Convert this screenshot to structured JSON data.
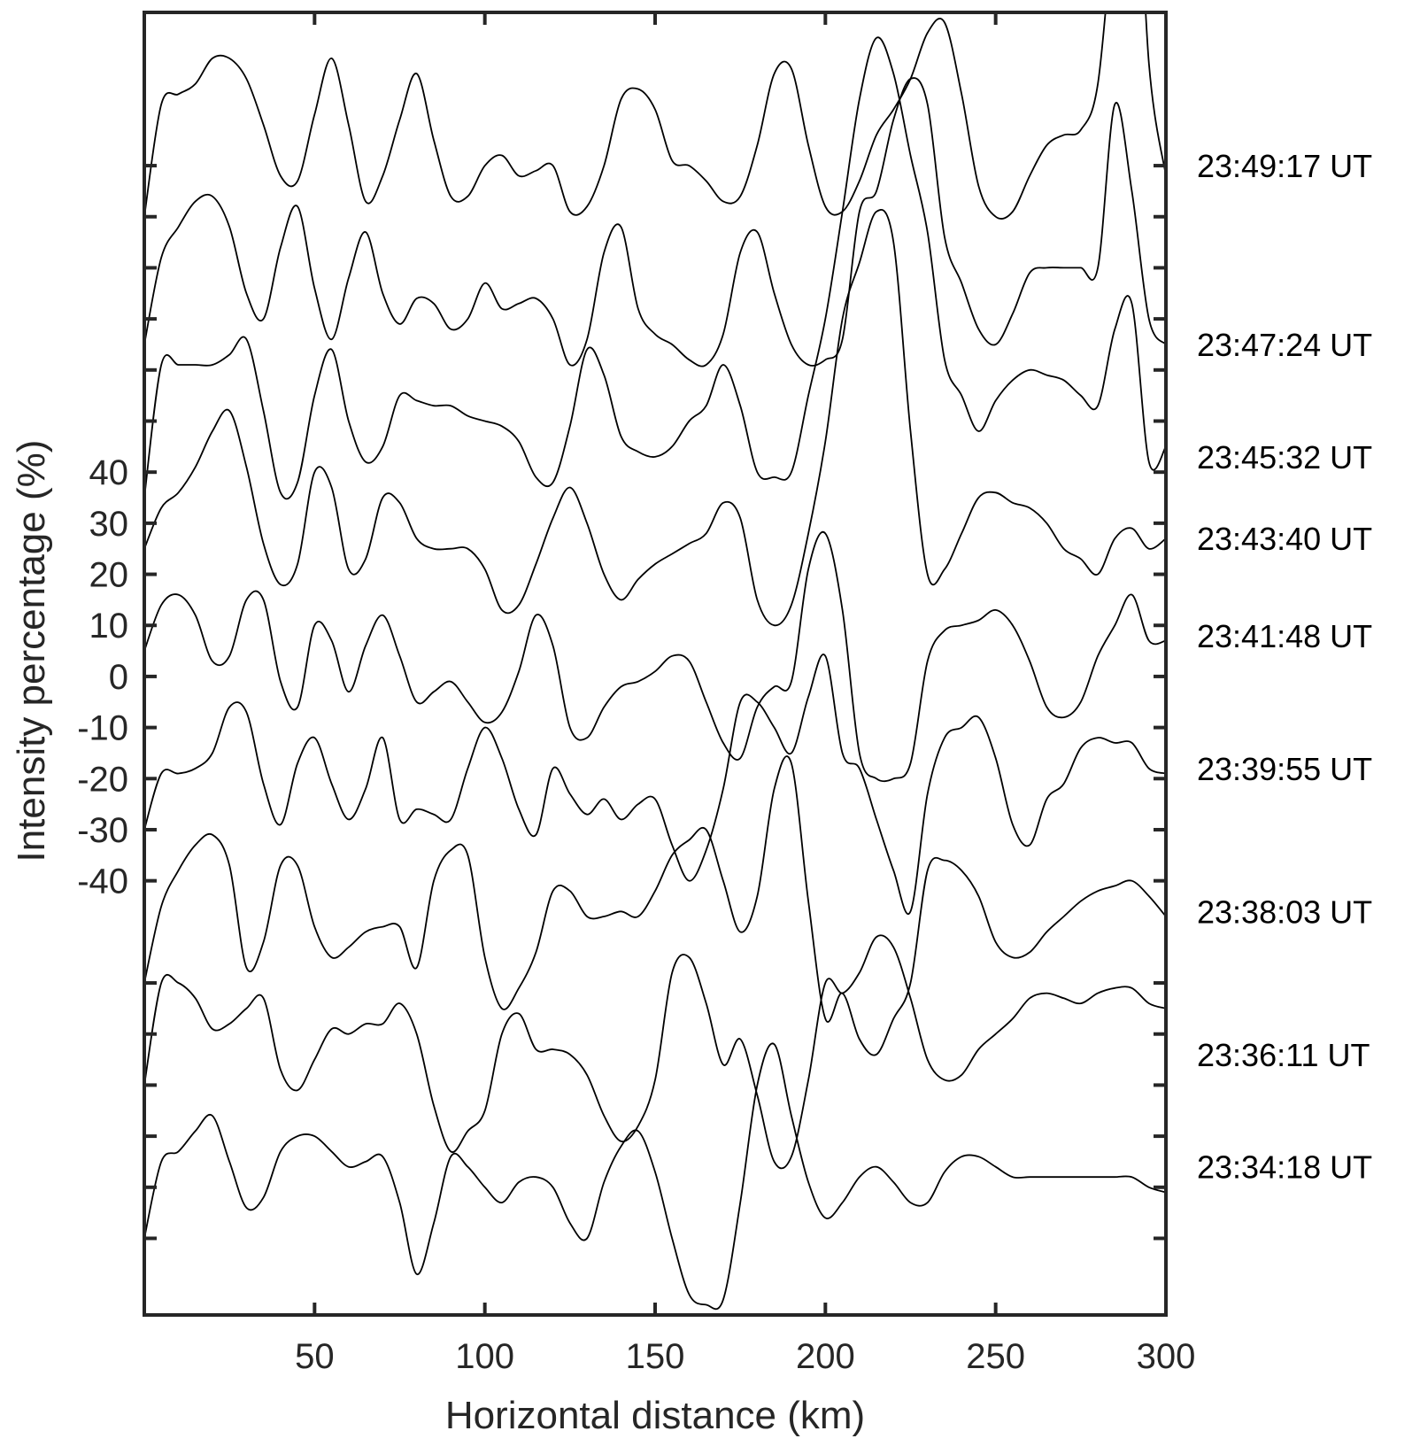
{
  "chart_data": {
    "type": "line",
    "title": "",
    "xlabel": "Horizontal distance (km)",
    "ylabel": "Intensity percentage (%)",
    "xlim": [
      0,
      300
    ],
    "ylim": [
      -125,
      130
    ],
    "x_ticks": [
      50,
      100,
      150,
      200,
      250,
      300
    ],
    "x_tick_labels": [
      "50",
      "100",
      "150",
      "200",
      "250",
      "300"
    ],
    "y_ticks_labeled": [
      40,
      30,
      20,
      10,
      0,
      -10,
      -20,
      -30,
      -40
    ],
    "y_tick_labels": [
      "40",
      "30",
      "20",
      "10",
      "0",
      "-10",
      "-20",
      "-30",
      "-40"
    ],
    "y_ticks_unlabeled": [
      -110,
      -100,
      -90,
      -80,
      -70,
      -60,
      50,
      60,
      70,
      80,
      90,
      100
    ],
    "grid": false,
    "line_color": "#000000",
    "axis_color": "#262626",
    "x": [
      0,
      5,
      10,
      15,
      20,
      25,
      30,
      35,
      40,
      45,
      50,
      55,
      60,
      65,
      70,
      75,
      80,
      85,
      90,
      95,
      100,
      105,
      110,
      115,
      120,
      125,
      130,
      135,
      140,
      145,
      150,
      155,
      160,
      165,
      170,
      175,
      180,
      185,
      190,
      195,
      200,
      205,
      210,
      215,
      220,
      225,
      230,
      235,
      240,
      245,
      250,
      255,
      260,
      265,
      270,
      275,
      280,
      285,
      290,
      295,
      300
    ],
    "series": [
      {
        "name": "23:49:17 UT",
        "label_y": 100,
        "values": [
          90,
          112,
          114,
          116,
          121,
          121,
          117,
          108,
          98,
          97,
          110,
          121,
          108,
          93,
          98,
          109,
          118,
          105,
          94,
          94,
          100,
          102,
          98,
          99,
          100,
          91,
          92,
          100,
          113,
          115,
          111,
          101,
          100,
          97,
          93,
          94,
          104,
          118,
          119,
          104,
          92,
          91,
          97,
          106,
          111,
          117,
          126,
          128,
          114,
          96,
          90,
          91,
          98,
          104,
          106,
          107,
          116,
          150,
          176,
          120,
          98
        ]
      },
      {
        "name": "23:47:24 UT",
        "label_y": 65,
        "values": [
          65,
          82,
          88,
          93,
          94,
          88,
          75,
          70,
          84,
          92,
          76,
          66,
          78,
          87,
          75,
          69,
          74,
          73,
          68,
          70,
          77,
          72,
          73,
          74,
          70,
          61,
          66,
          83,
          88,
          72,
          67,
          65,
          62,
          61,
          67,
          83,
          87,
          75,
          65,
          61,
          62,
          66,
          91,
          95,
          109,
          117,
          112,
          86,
          77,
          68,
          65,
          71,
          79,
          80,
          80,
          80,
          80,
          112,
          95,
          70,
          65
        ]
      },
      {
        "name": "23:45:32 UT",
        "label_y": 43,
        "values": [
          35,
          61,
          61,
          61,
          61,
          63,
          66,
          52,
          36,
          38,
          55,
          64,
          50,
          42,
          45,
          55,
          54,
          53,
          53,
          51,
          50,
          49,
          46,
          39,
          38,
          49,
          64,
          59,
          47,
          44,
          43,
          45,
          50,
          53,
          61,
          53,
          40,
          39,
          40,
          55,
          70,
          91,
          113,
          125,
          118,
          102,
          87,
          62,
          55,
          48,
          54,
          58,
          60,
          59,
          58,
          55,
          53,
          68,
          73,
          42,
          45
        ]
      },
      {
        "name": "23:43:40 UT",
        "label_y": 27,
        "values": [
          25,
          33,
          36,
          41,
          48,
          52,
          41,
          26,
          18,
          22,
          40,
          37,
          21,
          23,
          35,
          34,
          27,
          25,
          25,
          25,
          21,
          13,
          14,
          22,
          31,
          37,
          30,
          20,
          15,
          19,
          22,
          24,
          26,
          28,
          34,
          31,
          15,
          10,
          14,
          28,
          46,
          70,
          81,
          91,
          85,
          48,
          20,
          21,
          28,
          35,
          36,
          34,
          33,
          30,
          25,
          23,
          20,
          27,
          29,
          25,
          27
        ]
      },
      {
        "name": "23:41:48 UT",
        "label_y": 8,
        "values": [
          5,
          14,
          16,
          12,
          3,
          4,
          15,
          15,
          -1,
          -6,
          10,
          7,
          -3,
          6,
          12,
          4,
          -5,
          -3,
          -1,
          -5,
          -9,
          -7,
          1,
          12,
          6,
          -10,
          -12,
          -6,
          -2,
          -1,
          1,
          4,
          3,
          -5,
          -13,
          -16,
          -6,
          -2,
          -1,
          21,
          28,
          13,
          -15,
          -20,
          -20,
          -17,
          3,
          9,
          10,
          11,
          13,
          10,
          3,
          -6,
          -8,
          -5,
          4,
          10,
          16,
          7,
          7
        ]
      },
      {
        "name": "23:39:55 UT",
        "label_y": -18,
        "values": [
          -30,
          -19,
          -19,
          -18,
          -15,
          -6,
          -7,
          -21,
          -29,
          -17,
          -12,
          -21,
          -28,
          -22,
          -12,
          -28,
          -26,
          -27,
          -28,
          -18,
          -10,
          -16,
          -26,
          -31,
          -18,
          -23,
          -27,
          -24,
          -28,
          -25,
          -24,
          -33,
          -40,
          -34,
          -22,
          -5,
          -5,
          -10,
          -15,
          -4,
          4,
          -15,
          -18,
          -28,
          -38,
          -46,
          -23,
          -12,
          -10,
          -8,
          -16,
          -29,
          -33,
          -24,
          -21,
          -14,
          -12,
          -13,
          -13,
          -18,
          -19
        ]
      },
      {
        "name": "23:38:03 UT",
        "label_y": -46,
        "values": [
          -60,
          -45,
          -38,
          -33,
          -31,
          -37,
          -57,
          -52,
          -37,
          -37,
          -49,
          -55,
          -53,
          -50,
          -49,
          -49,
          -57,
          -40,
          -34,
          -35,
          -55,
          -65,
          -61,
          -54,
          -42,
          -42,
          -47,
          -47,
          -46,
          -47,
          -42,
          -35,
          -32,
          -30,
          -40,
          -50,
          -43,
          -22,
          -17,
          -44,
          -67,
          -62,
          -71,
          -74,
          -67,
          -60,
          -38,
          -36,
          -38,
          -43,
          -52,
          -55,
          -54,
          -50,
          -47,
          -44,
          -42,
          -41,
          -40,
          -43,
          -47
        ]
      },
      {
        "name": "23:36:11 UT",
        "label_y": -74,
        "values": [
          -80,
          -60,
          -60,
          -63,
          -69,
          -68,
          -65,
          -63,
          -77,
          -81,
          -75,
          -69,
          -70,
          -68,
          -68,
          -64,
          -70,
          -84,
          -93,
          -89,
          -85,
          -70,
          -66,
          -73,
          -73,
          -74,
          -78,
          -86,
          -91,
          -88,
          -79,
          -58,
          -55,
          -64,
          -76,
          -71,
          -82,
          -95,
          -94,
          -79,
          -60,
          -62,
          -58,
          -51,
          -53,
          -63,
          -75,
          -79,
          -78,
          -73,
          -70,
          -67,
          -63,
          -62,
          -63,
          -64,
          -62,
          -61,
          -61,
          -64,
          -65
        ]
      },
      {
        "name": "23:34:18 UT",
        "label_y": -96,
        "values": [
          -110,
          -95,
          -93,
          -89,
          -86,
          -95,
          -104,
          -102,
          -93,
          -90,
          -90,
          -93,
          -96,
          -95,
          -94,
          -103,
          -117,
          -107,
          -94,
          -96,
          -100,
          -103,
          -99,
          -98,
          -100,
          -107,
          -110,
          -99,
          -92,
          -89,
          -97,
          -110,
          -121,
          -123,
          -122,
          -103,
          -80,
          -72,
          -86,
          -99,
          -106,
          -103,
          -98,
          -96,
          -99,
          -103,
          -103,
          -97,
          -94,
          -94,
          -96,
          -98,
          -98,
          -98,
          -98,
          -98,
          -98,
          -98,
          -98,
          -100,
          -101
        ]
      }
    ]
  }
}
